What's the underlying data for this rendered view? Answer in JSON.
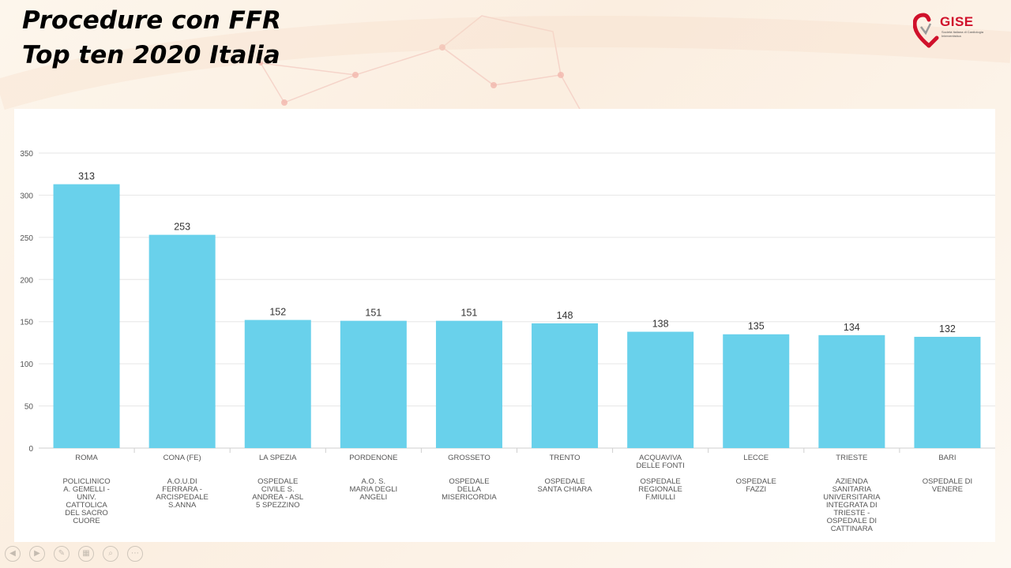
{
  "slide": {
    "title_line1": "Procedure con FFR",
    "title_line2": "Top ten 2020 Italia",
    "logo_text": "GISE",
    "logo_subtitle": "Società Italiana di Cardiologia Interventistica"
  },
  "nav_icons": [
    "prev-icon",
    "next-icon",
    "pen-icon",
    "slides-icon",
    "zoom-icon",
    "more-icon"
  ],
  "colors": {
    "bar": "#69d1eb",
    "axis_text": "#555555",
    "grid": "#e6e6e6"
  },
  "chart_data": {
    "type": "bar",
    "categories": [
      "ROMA",
      "CONA (FE)",
      "LA SPEZIA",
      "PORDENONE",
      "GROSSETO",
      "TRENTO",
      "ACQUAVIVA DELLE FONTI",
      "LECCE",
      "TRIESTE",
      "BARI"
    ],
    "category_lines": [
      [
        "ROMA"
      ],
      [
        "CONA (FE)"
      ],
      [
        "LA SPEZIA"
      ],
      [
        "PORDENONE"
      ],
      [
        "GROSSETO"
      ],
      [
        "TRENTO"
      ],
      [
        "ACQUAVIVA",
        "DELLE FONTI"
      ],
      [
        "LECCE"
      ],
      [
        "TRIESTE"
      ],
      [
        "BARI"
      ]
    ],
    "subcategory_lines": [
      [
        "POLICLINICO",
        "A. GEMELLI -",
        "UNIV.",
        "CATTOLICA",
        "DEL SACRO",
        "CUORE"
      ],
      [
        "A.O.U.DI",
        "FERRARA -",
        "ARCISPEDALE",
        "S.ANNA"
      ],
      [
        "OSPEDALE",
        "CIVILE S.",
        "ANDREA - ASL",
        "5 SPEZZINO"
      ],
      [
        "A.O. S.",
        "MARIA DEGLI",
        "ANGELI"
      ],
      [
        "OSPEDALE",
        "DELLA",
        "MISERICORDIA"
      ],
      [
        "OSPEDALE",
        "SANTA CHIARA"
      ],
      [
        "OSPEDALE",
        "REGIONALE",
        "F.MIULLI"
      ],
      [
        "OSPEDALE",
        "FAZZI"
      ],
      [
        "AZIENDA",
        "SANITARIA",
        "UNIVERSITARIA",
        "INTEGRATA DI",
        "TRIESTE -",
        "OSPEDALE DI",
        "CATTINARA"
      ],
      [
        "OSPEDALE DI",
        "VENERE"
      ]
    ],
    "values": [
      313,
      253,
      152,
      151,
      151,
      148,
      138,
      135,
      134,
      132
    ],
    "ylim": [
      0,
      350
    ],
    "yticks": [
      0,
      50,
      100,
      150,
      200,
      250,
      300,
      350
    ],
    "grid": true,
    "data_labels": true
  }
}
